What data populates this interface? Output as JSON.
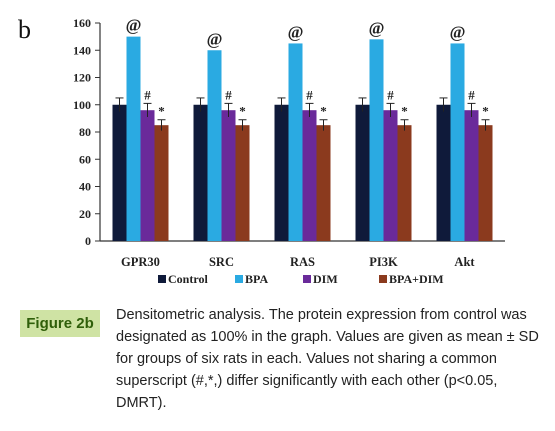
{
  "panel_label": "b",
  "caption": {
    "label": "Figure 2b",
    "text": "Densitometric analysis. The protein expression from control was designated as 100% in the graph. Values are given as mean ± SD for groups of six rats in each. Values not sharing a common superscript (#,*,) differ significantly with each other (p<0.05, DMRT)."
  },
  "chart_data": {
    "type": "bar",
    "title": "",
    "xlabel": "",
    "ylabel": "",
    "ylim": [
      0,
      160
    ],
    "yticks": [
      0,
      20,
      40,
      60,
      80,
      100,
      120,
      140,
      160
    ],
    "categories": [
      "GPR30",
      "SRC",
      "RAS",
      "PI3K",
      "Akt"
    ],
    "series": [
      {
        "name": "Control",
        "color": "#0f1a3a",
        "values": [
          100,
          100,
          100,
          100,
          100
        ],
        "errors": [
          5,
          5,
          5,
          5,
          5
        ],
        "marker": ""
      },
      {
        "name": "BPA",
        "color": "#2aaae2",
        "values": [
          150,
          140,
          145,
          148,
          145
        ],
        "errors": [
          0,
          0,
          0,
          0,
          0
        ],
        "marker": "@"
      },
      {
        "name": "DIM",
        "color": "#6a2a9a",
        "values": [
          96,
          96,
          96,
          96,
          96
        ],
        "errors": [
          5,
          5,
          5,
          5,
          5
        ],
        "marker": "#"
      },
      {
        "name": "BPA+DIM",
        "color": "#8b3a1e",
        "values": [
          85,
          85,
          85,
          85,
          85
        ],
        "errors": [
          4,
          4,
          4,
          4,
          4
        ],
        "marker": "*"
      }
    ],
    "legend_position": "bottom",
    "grid": false
  }
}
